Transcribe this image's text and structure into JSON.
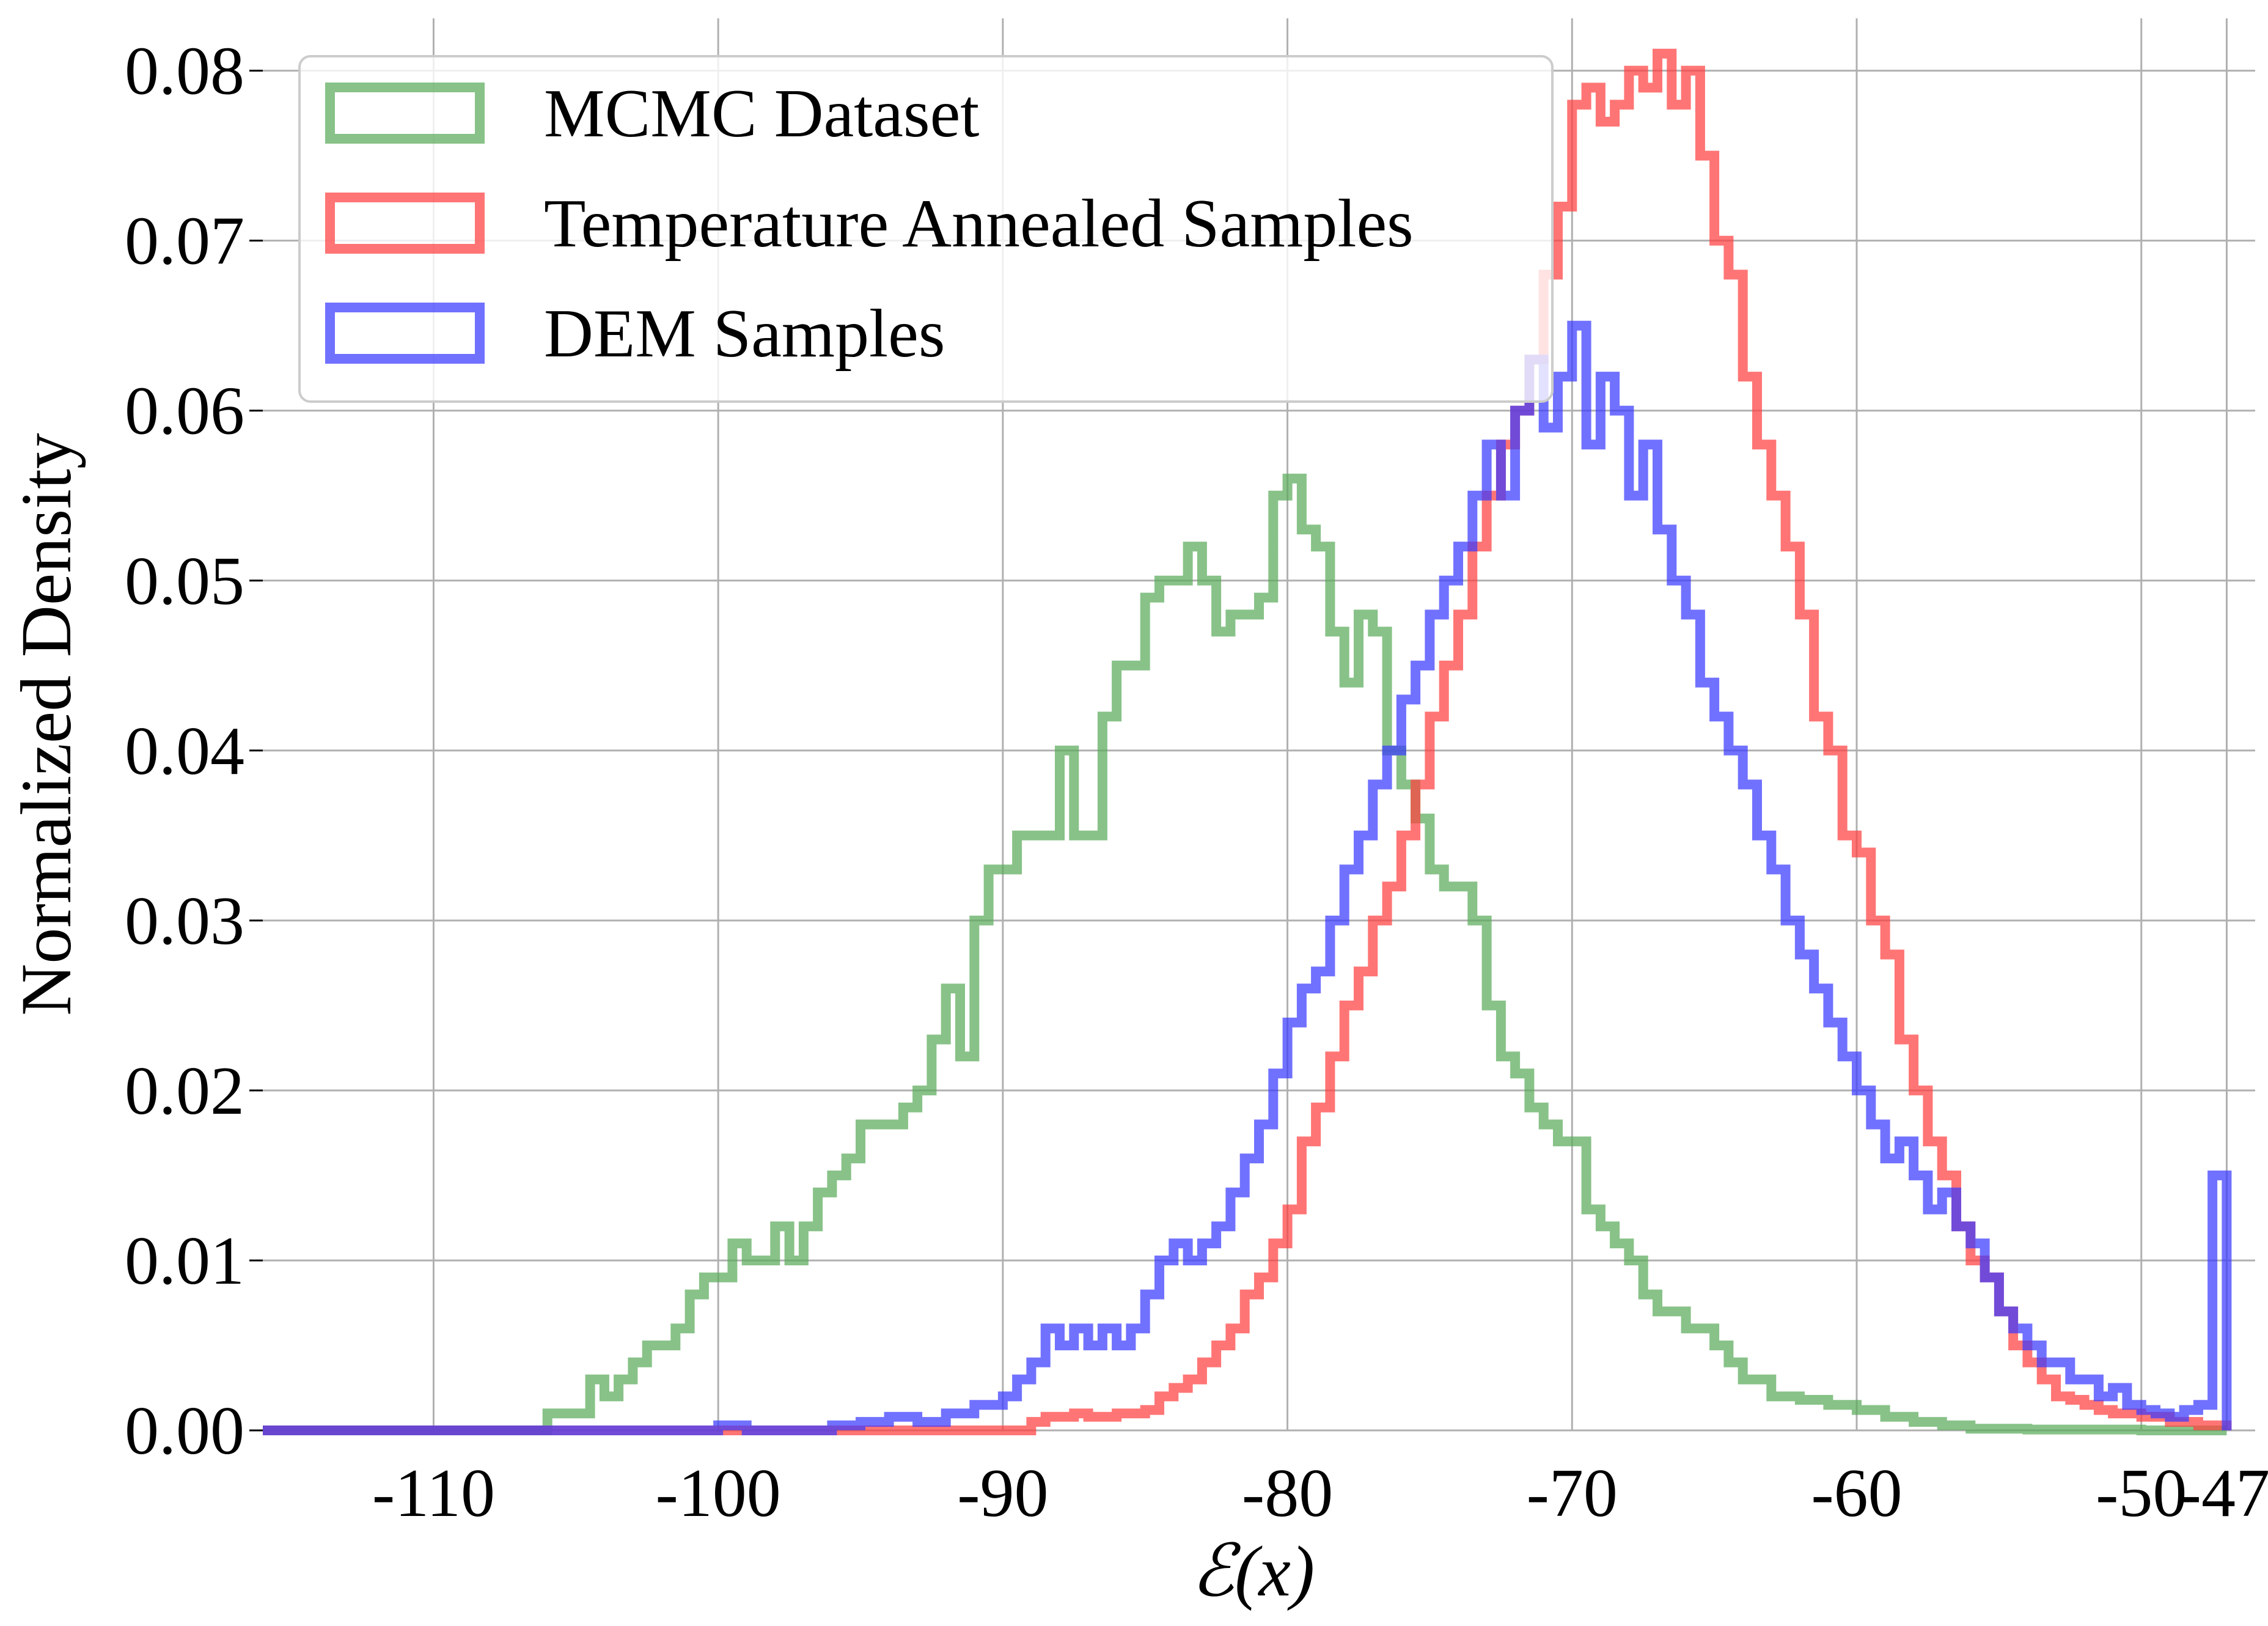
{
  "chart_data": {
    "type": "histogram",
    "title": "",
    "xlabel": "ℰ(x)",
    "ylabel": "Normalized Density",
    "xlim": [
      -116,
      -46
    ],
    "ylim": [
      0,
      0.082
    ],
    "x_ticks": [
      -110,
      -100,
      -90,
      -80,
      -70,
      -60,
      -50
    ],
    "x_tick_labels": [
      "-110",
      "-100",
      "-90",
      "-80",
      "-70",
      "-60",
      "-50"
    ],
    "x_extra_tick": {
      "value": -47,
      "label": "-47 ≤"
    },
    "y_ticks": [
      0,
      0.01,
      0.02,
      0.03,
      0.04,
      0.05,
      0.06,
      0.07,
      0.08
    ],
    "y_tick_labels": [
      "0.00",
      "0.01",
      "0.02",
      "0.03",
      "0.04",
      "0.05",
      "0.06",
      "0.07",
      "0.08"
    ],
    "grid": true,
    "legend_position": "top-left",
    "series": [
      {
        "name": "MCMC Dataset",
        "color": "#5aaa5a",
        "points": [
          [
            -116,
            0
          ],
          [
            -107,
            0
          ],
          [
            -106,
            0.001
          ],
          [
            -105,
            0.001
          ],
          [
            -104.5,
            0.003
          ],
          [
            -104,
            0.002
          ],
          [
            -103.5,
            0.003
          ],
          [
            -103,
            0.004
          ],
          [
            -102.5,
            0.005
          ],
          [
            -102,
            0.005
          ],
          [
            -101.5,
            0.006
          ],
          [
            -101,
            0.008
          ],
          [
            -100.5,
            0.009
          ],
          [
            -100,
            0.009
          ],
          [
            -99.5,
            0.011
          ],
          [
            -99,
            0.01
          ],
          [
            -98.5,
            0.01
          ],
          [
            -98,
            0.012
          ],
          [
            -97.5,
            0.01
          ],
          [
            -97,
            0.012
          ],
          [
            -96.5,
            0.014
          ],
          [
            -96,
            0.015
          ],
          [
            -95.5,
            0.016
          ],
          [
            -95,
            0.018
          ],
          [
            -94,
            0.018
          ],
          [
            -93.5,
            0.019
          ],
          [
            -93,
            0.02
          ],
          [
            -92.5,
            0.023
          ],
          [
            -92,
            0.026
          ],
          [
            -91.5,
            0.022
          ],
          [
            -91,
            0.03
          ],
          [
            -90.5,
            0.033
          ],
          [
            -90,
            0.033
          ],
          [
            -89.5,
            0.035
          ],
          [
            -88.5,
            0.035
          ],
          [
            -88,
            0.04
          ],
          [
            -87.5,
            0.035
          ],
          [
            -87,
            0.035
          ],
          [
            -86.5,
            0.042
          ],
          [
            -86,
            0.045
          ],
          [
            -85.5,
            0.045
          ],
          [
            -85,
            0.049
          ],
          [
            -84.5,
            0.05
          ],
          [
            -84,
            0.05
          ],
          [
            -83.5,
            0.052
          ],
          [
            -83,
            0.05
          ],
          [
            -82.5,
            0.047
          ],
          [
            -82,
            0.048
          ],
          [
            -81.5,
            0.048
          ],
          [
            -81,
            0.049
          ],
          [
            -80.5,
            0.055
          ],
          [
            -80,
            0.056
          ],
          [
            -79.5,
            0.053
          ],
          [
            -79,
            0.052
          ],
          [
            -78.5,
            0.047
          ],
          [
            -78,
            0.044
          ],
          [
            -77.5,
            0.048
          ],
          [
            -77,
            0.047
          ],
          [
            -76.5,
            0.04
          ],
          [
            -76,
            0.038
          ],
          [
            -75.5,
            0.036
          ],
          [
            -75,
            0.033
          ],
          [
            -74.5,
            0.032
          ],
          [
            -74,
            0.032
          ],
          [
            -73.5,
            0.03
          ],
          [
            -73,
            0.025
          ],
          [
            -72.5,
            0.022
          ],
          [
            -72,
            0.021
          ],
          [
            -71.5,
            0.019
          ],
          [
            -71,
            0.018
          ],
          [
            -70.5,
            0.017
          ],
          [
            -70,
            0.017
          ],
          [
            -69.5,
            0.013
          ],
          [
            -69,
            0.012
          ],
          [
            -68.5,
            0.011
          ],
          [
            -68,
            0.01
          ],
          [
            -67.5,
            0.008
          ],
          [
            -67,
            0.007
          ],
          [
            -66,
            0.006
          ],
          [
            -65,
            0.005
          ],
          [
            -64.5,
            0.004
          ],
          [
            -64,
            0.003
          ],
          [
            -63,
            0.002
          ],
          [
            -62,
            0.0018
          ],
          [
            -61,
            0.0015
          ],
          [
            -60,
            0.0012
          ],
          [
            -59,
            0.0008
          ],
          [
            -58,
            0.0005
          ],
          [
            -57,
            0.0003
          ],
          [
            -56,
            0.0001
          ],
          [
            -54,
            5e-05
          ],
          [
            -50,
            0
          ],
          [
            -47,
            0
          ]
        ]
      },
      {
        "name": "Temperature Annealed Samples",
        "color": "#ff4040",
        "points": [
          [
            -116,
            0
          ],
          [
            -90,
            0
          ],
          [
            -89,
            0.0005
          ],
          [
            -88.5,
            0.0008
          ],
          [
            -87.5,
            0.001
          ],
          [
            -87,
            0.0008
          ],
          [
            -86,
            0.001
          ],
          [
            -85,
            0.0012
          ],
          [
            -84.5,
            0.002
          ],
          [
            -84,
            0.0025
          ],
          [
            -83.5,
            0.003
          ],
          [
            -83,
            0.004
          ],
          [
            -82.5,
            0.005
          ],
          [
            -82,
            0.006
          ],
          [
            -81.5,
            0.008
          ],
          [
            -81,
            0.009
          ],
          [
            -80.5,
            0.011
          ],
          [
            -80,
            0.013
          ],
          [
            -79.5,
            0.017
          ],
          [
            -79,
            0.019
          ],
          [
            -78.5,
            0.022
          ],
          [
            -78,
            0.025
          ],
          [
            -77.5,
            0.027
          ],
          [
            -77,
            0.03
          ],
          [
            -76.5,
            0.032
          ],
          [
            -76,
            0.035
          ],
          [
            -75.5,
            0.038
          ],
          [
            -75,
            0.042
          ],
          [
            -74.5,
            0.045
          ],
          [
            -74,
            0.048
          ],
          [
            -73.5,
            0.052
          ],
          [
            -73,
            0.055
          ],
          [
            -72.5,
            0.058
          ],
          [
            -72,
            0.06
          ],
          [
            -71.5,
            0.063
          ],
          [
            -71,
            0.068
          ],
          [
            -70.5,
            0.072
          ],
          [
            -70,
            0.078
          ],
          [
            -69.5,
            0.079
          ],
          [
            -69,
            0.077
          ],
          [
            -68.5,
            0.078
          ],
          [
            -68,
            0.08
          ],
          [
            -67.5,
            0.079
          ],
          [
            -67,
            0.081
          ],
          [
            -66.5,
            0.078
          ],
          [
            -66,
            0.08
          ],
          [
            -65.5,
            0.075
          ],
          [
            -65,
            0.07
          ],
          [
            -64.5,
            0.068
          ],
          [
            -64,
            0.062
          ],
          [
            -63.5,
            0.058
          ],
          [
            -63,
            0.055
          ],
          [
            -62.5,
            0.052
          ],
          [
            -62,
            0.048
          ],
          [
            -61.5,
            0.042
          ],
          [
            -61,
            0.04
          ],
          [
            -60.5,
            0.035
          ],
          [
            -60,
            0.034
          ],
          [
            -59.5,
            0.03
          ],
          [
            -59,
            0.028
          ],
          [
            -58.5,
            0.023
          ],
          [
            -58,
            0.02
          ],
          [
            -57.5,
            0.017
          ],
          [
            -57,
            0.015
          ],
          [
            -56.5,
            0.012
          ],
          [
            -56,
            0.01
          ],
          [
            -55.5,
            0.009
          ],
          [
            -55,
            0.007
          ],
          [
            -54.5,
            0.005
          ],
          [
            -54,
            0.004
          ],
          [
            -53.5,
            0.003
          ],
          [
            -53,
            0.002
          ],
          [
            -52.5,
            0.0018
          ],
          [
            -52,
            0.0015
          ],
          [
            -51.5,
            0.0012
          ],
          [
            -51,
            0.001
          ],
          [
            -50,
            0.0008
          ],
          [
            -49,
            0.0005
          ],
          [
            -48,
            0.0003
          ],
          [
            -47,
            0
          ]
        ]
      },
      {
        "name": "DEM Samples",
        "color": "#3a3aff",
        "points": [
          [
            -116,
            0
          ],
          [
            -101,
            0
          ],
          [
            -100,
            0.0003
          ],
          [
            -99,
            0
          ],
          [
            -96,
            0.0003
          ],
          [
            -95,
            0.0005
          ],
          [
            -94,
            0.0008
          ],
          [
            -93,
            0.0005
          ],
          [
            -92,
            0.001
          ],
          [
            -91,
            0.0015
          ],
          [
            -90,
            0.002
          ],
          [
            -89.5,
            0.003
          ],
          [
            -89,
            0.004
          ],
          [
            -88.5,
            0.006
          ],
          [
            -88,
            0.005
          ],
          [
            -87.5,
            0.006
          ],
          [
            -87,
            0.005
          ],
          [
            -86.5,
            0.006
          ],
          [
            -86,
            0.005
          ],
          [
            -85.5,
            0.006
          ],
          [
            -85,
            0.008
          ],
          [
            -84.5,
            0.01
          ],
          [
            -84,
            0.011
          ],
          [
            -83.5,
            0.01
          ],
          [
            -83,
            0.011
          ],
          [
            -82.5,
            0.012
          ],
          [
            -82,
            0.014
          ],
          [
            -81.5,
            0.016
          ],
          [
            -81,
            0.018
          ],
          [
            -80.5,
            0.021
          ],
          [
            -80,
            0.024
          ],
          [
            -79.5,
            0.026
          ],
          [
            -79,
            0.027
          ],
          [
            -78.5,
            0.03
          ],
          [
            -78,
            0.033
          ],
          [
            -77.5,
            0.035
          ],
          [
            -77,
            0.038
          ],
          [
            -76.5,
            0.04
          ],
          [
            -76,
            0.043
          ],
          [
            -75.5,
            0.045
          ],
          [
            -75,
            0.048
          ],
          [
            -74.5,
            0.05
          ],
          [
            -74,
            0.052
          ],
          [
            -73.5,
            0.055
          ],
          [
            -73,
            0.058
          ],
          [
            -72.5,
            0.055
          ],
          [
            -72,
            0.06
          ],
          [
            -71.5,
            0.063
          ],
          [
            -71,
            0.059
          ],
          [
            -70.5,
            0.062
          ],
          [
            -70,
            0.065
          ],
          [
            -69.5,
            0.058
          ],
          [
            -69,
            0.062
          ],
          [
            -68.5,
            0.06
          ],
          [
            -68,
            0.055
          ],
          [
            -67.5,
            0.058
          ],
          [
            -67,
            0.053
          ],
          [
            -66.5,
            0.05
          ],
          [
            -66,
            0.048
          ],
          [
            -65.5,
            0.044
          ],
          [
            -65,
            0.042
          ],
          [
            -64.5,
            0.04
          ],
          [
            -64,
            0.038
          ],
          [
            -63.5,
            0.035
          ],
          [
            -63,
            0.033
          ],
          [
            -62.5,
            0.03
          ],
          [
            -62,
            0.028
          ],
          [
            -61.5,
            0.026
          ],
          [
            -61,
            0.024
          ],
          [
            -60.5,
            0.022
          ],
          [
            -60,
            0.02
          ],
          [
            -59.5,
            0.018
          ],
          [
            -59,
            0.016
          ],
          [
            -58.5,
            0.017
          ],
          [
            -58,
            0.015
          ],
          [
            -57.5,
            0.013
          ],
          [
            -57,
            0.014
          ],
          [
            -56.5,
            0.012
          ],
          [
            -56,
            0.011
          ],
          [
            -55.5,
            0.009
          ],
          [
            -55,
            0.007
          ],
          [
            -54.5,
            0.006
          ],
          [
            -54,
            0.005
          ],
          [
            -53.5,
            0.004
          ],
          [
            -53,
            0.004
          ],
          [
            -52.5,
            0.003
          ],
          [
            -52,
            0.003
          ],
          [
            -51.5,
            0.002
          ],
          [
            -51,
            0.0025
          ],
          [
            -50.5,
            0.0015
          ],
          [
            -50,
            0.0012
          ],
          [
            -49.5,
            0.001
          ],
          [
            -49,
            0.0008
          ],
          [
            -48.5,
            0.0012
          ],
          [
            -48,
            0.0015
          ],
          [
            -47.5,
            0.015
          ],
          [
            -47,
            0
          ]
        ]
      }
    ]
  }
}
